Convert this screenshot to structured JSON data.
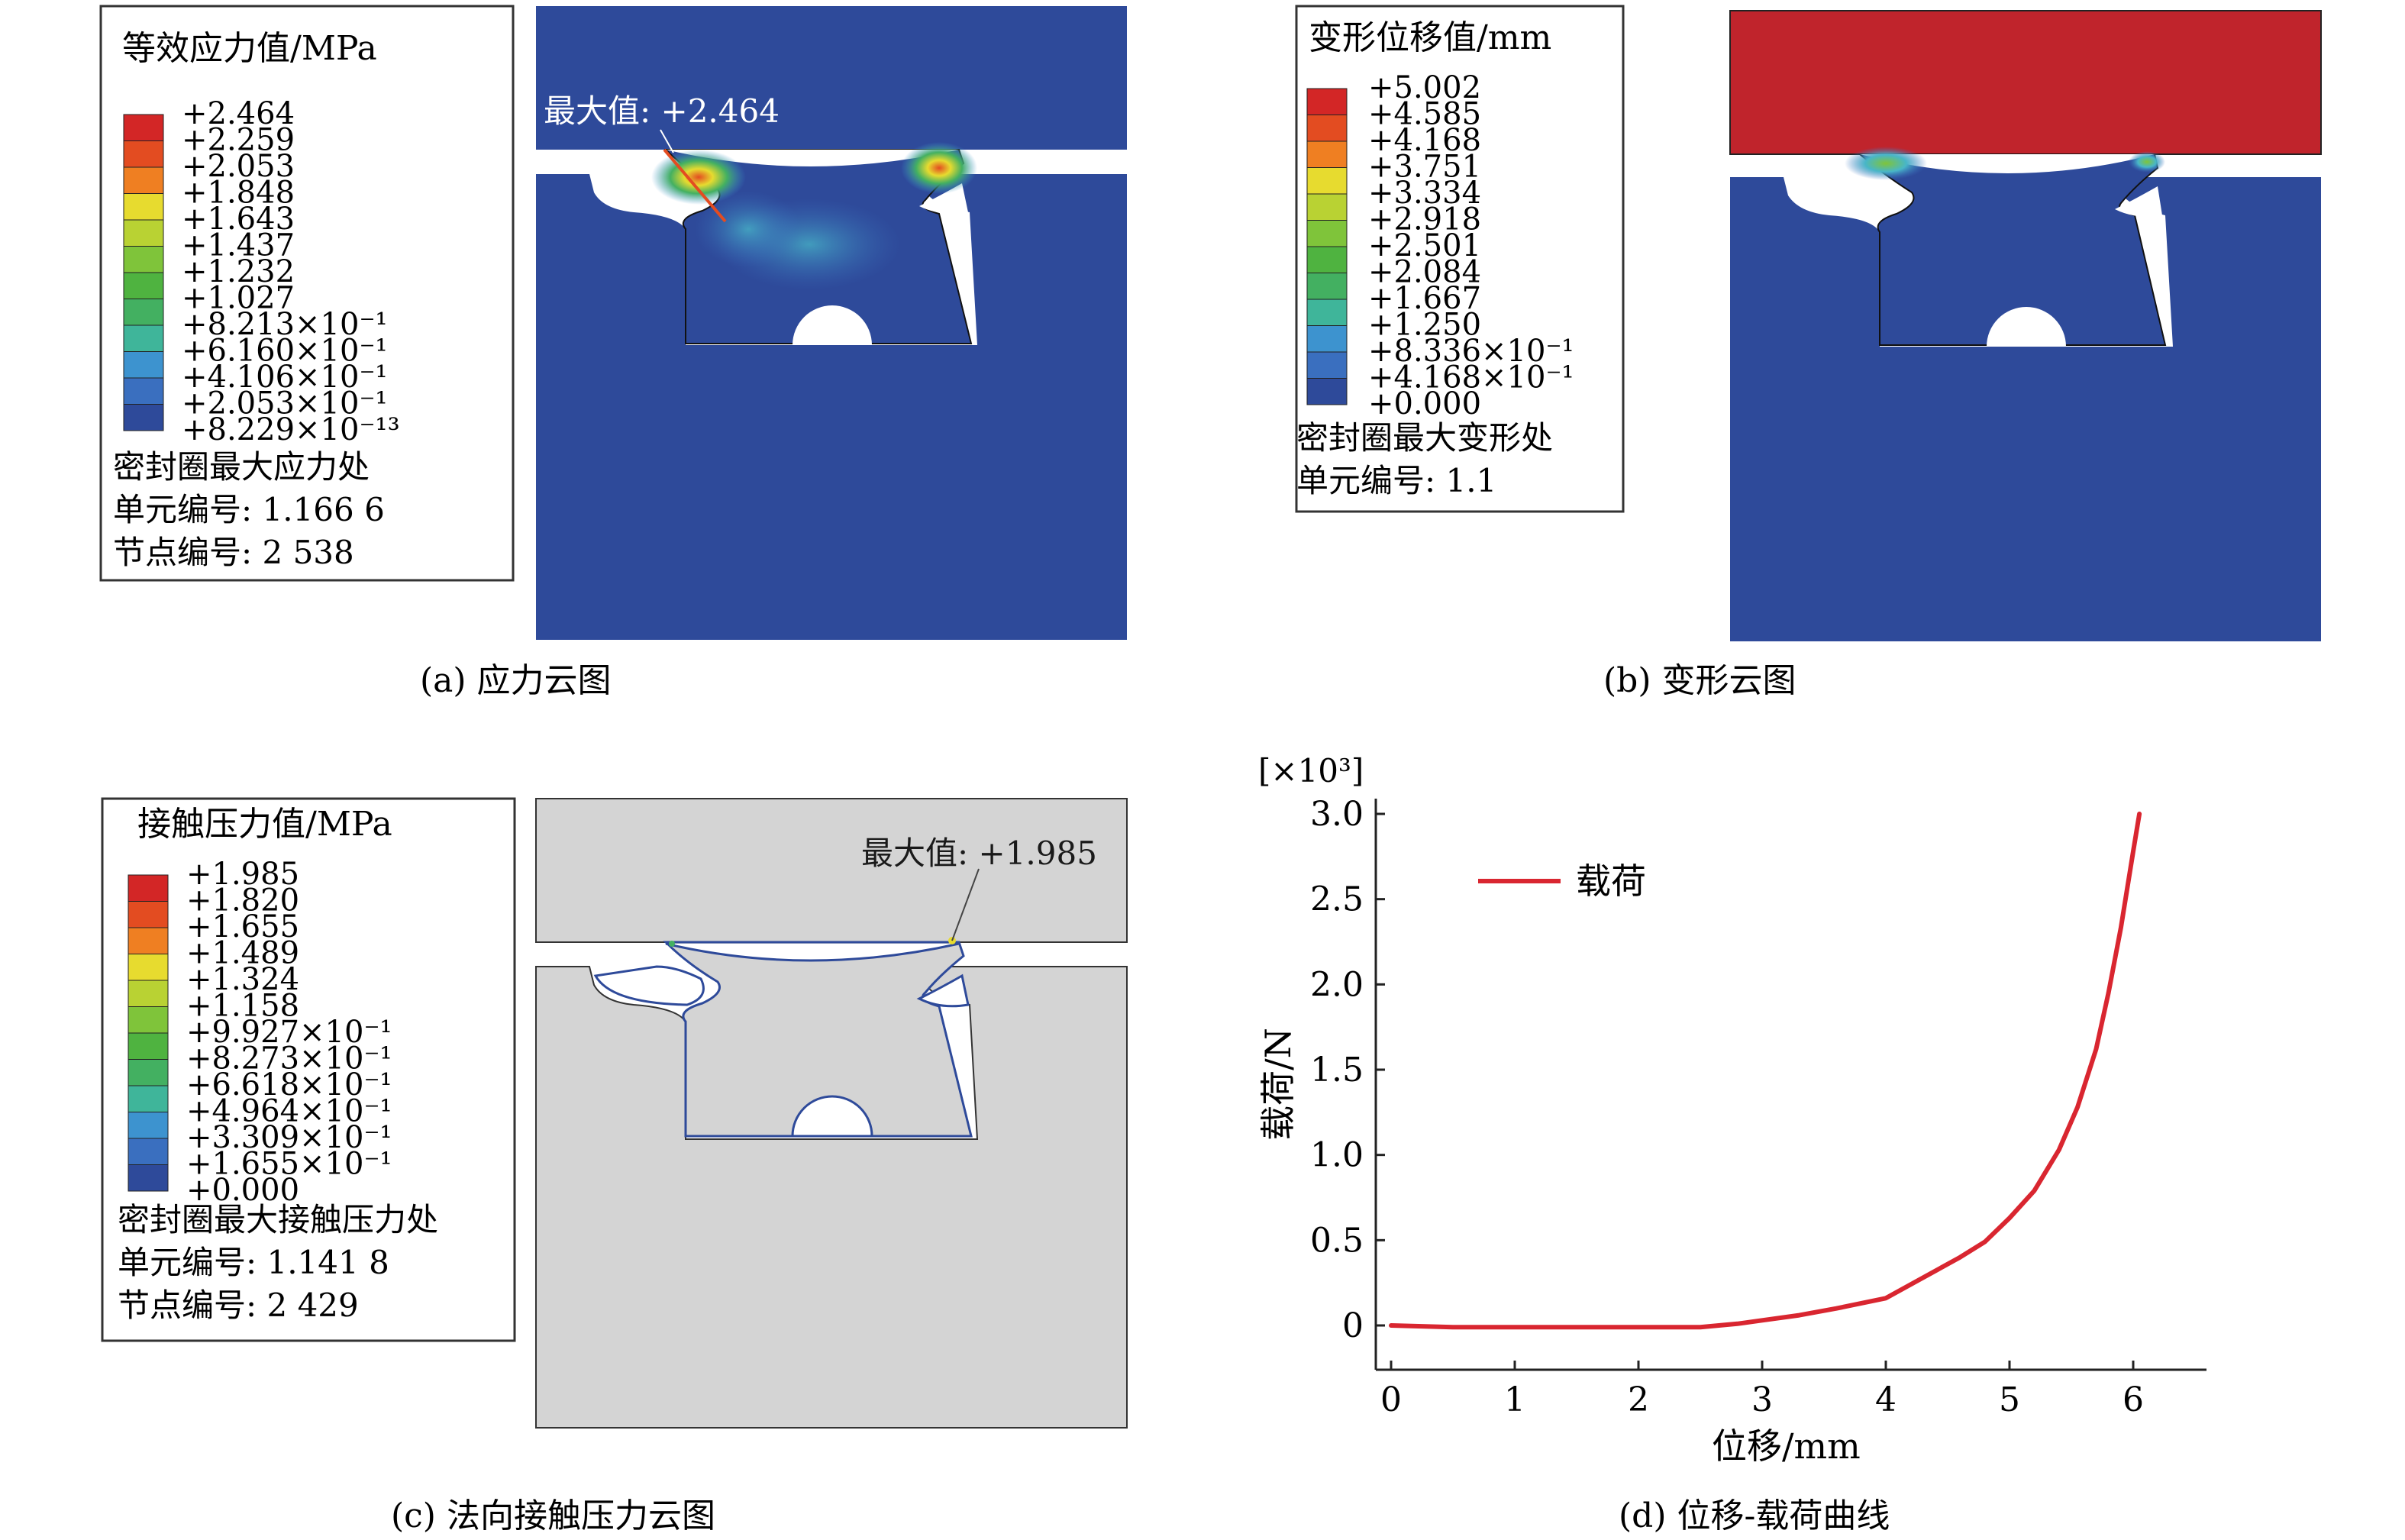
{
  "colors": {
    "blue": "#2e4a9a",
    "red": "#c0242c",
    "grey": "#d4d4d4",
    "curve": "#d92630",
    "palette": [
      "#2e4a9a",
      "#3a6fbf",
      "#3d93cf",
      "#48b6c8",
      "#3fb59a",
      "#43b061",
      "#4fb340",
      "#7fc43a",
      "#b9d233",
      "#e7db2f",
      "#f4b32a",
      "#ef7f22",
      "#e34c21",
      "#d32626"
    ]
  },
  "panel_a": {
    "caption": "(a) 应力云图",
    "legend_title": "等效应力值/MPa",
    "legend_values": [
      "+2.464",
      "+2.259",
      "+2.053",
      "+1.848",
      "+1.643",
      "+1.437",
      "+1.232",
      "+1.027",
      "+8.213×10⁻¹",
      "+6.160×10⁻¹",
      "+4.106×10⁻¹",
      "+2.053×10⁻¹",
      "+8.229×10⁻¹³"
    ],
    "info_lines": [
      "密封圈最大应力处",
      "单元编号: 1.166 6",
      "节点编号: 2 538"
    ],
    "max_label": "最大值: +2.464"
  },
  "panel_b": {
    "caption": "(b) 变形云图",
    "legend_title": "变形位移值/mm",
    "legend_values": [
      "+5.002",
      "+4.585",
      "+4.168",
      "+3.751",
      "+3.334",
      "+2.918",
      "+2.501",
      "+2.084",
      "+1.667",
      "+1.250",
      "+8.336×10⁻¹",
      "+4.168×10⁻¹",
      "+0.000"
    ],
    "info_lines": [
      "密封圈最大变形处",
      "单元编号: 1.1"
    ]
  },
  "panel_c": {
    "caption": "(c) 法向接触压力云图",
    "legend_title": "接触压力值/MPa",
    "legend_values": [
      "+1.985",
      "+1.820",
      "+1.655",
      "+1.489",
      "+1.324",
      "+1.158",
      "+9.927×10⁻¹",
      "+8.273×10⁻¹",
      "+6.618×10⁻¹",
      "+4.964×10⁻¹",
      "+3.309×10⁻¹",
      "+1.655×10⁻¹",
      "+0.000"
    ],
    "info_lines": [
      "密封圈最大接触压力处",
      "单元编号: 1.141 8",
      "节点编号: 2 429"
    ],
    "max_label": "最大值: +1.985"
  },
  "panel_d": {
    "caption": "(d) 位移-载荷曲线"
  },
  "chart_data": {
    "type": "line",
    "xlabel": "位移/mm",
    "ylabel": "载荷/N",
    "y_multiplier": "[×10³]",
    "xlim": [
      0,
      6.5
    ],
    "ylim": [
      0,
      3.0
    ],
    "xticks": [
      "0",
      "1",
      "2",
      "3",
      "4",
      "5",
      "6"
    ],
    "yticks": [
      "0",
      "0.5",
      "1.0",
      "1.5",
      "2.0",
      "2.5",
      "3.0"
    ],
    "grid": false,
    "legend_position": "top-left",
    "series": [
      {
        "name": "载荷",
        "x": [
          0,
          0.5,
          1.0,
          1.5,
          2.0,
          2.5,
          2.8,
          3.0,
          3.3,
          3.6,
          4.0,
          4.3,
          4.6,
          4.8,
          5.0,
          5.2,
          5.4,
          5.55,
          5.7,
          5.8,
          5.9,
          6.0,
          6.05
        ],
        "y": [
          0,
          -0.01,
          -0.01,
          -0.01,
          -0.01,
          -0.01,
          0.01,
          0.03,
          0.06,
          0.1,
          0.16,
          0.28,
          0.4,
          0.49,
          0.63,
          0.79,
          1.03,
          1.28,
          1.62,
          1.95,
          2.33,
          2.78,
          3.0
        ]
      }
    ]
  }
}
